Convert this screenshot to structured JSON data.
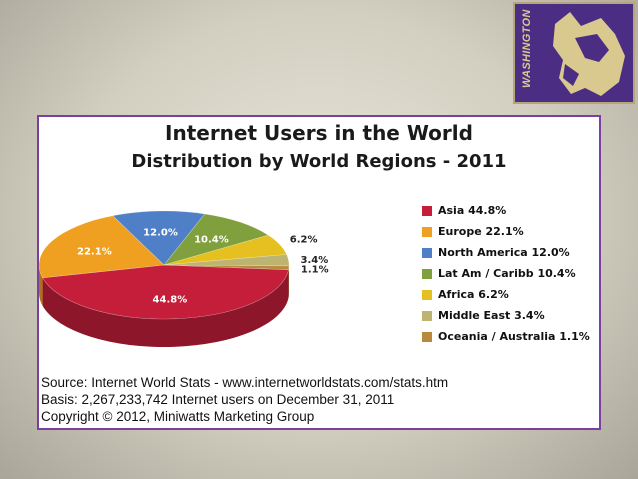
{
  "logo": {
    "text": "WASHINGTON",
    "icon": "husky-icon"
  },
  "chart_data": {
    "type": "pie",
    "title": "Internet Users in the World",
    "subtitle": "Distribution by World Regions - 2011",
    "slices": [
      {
        "name": "Asia",
        "value": 44.8,
        "label": "44.8%",
        "legend": "Asia  44.8%",
        "color": "#c41e3a"
      },
      {
        "name": "Europe",
        "value": 22.1,
        "label": "22.1%",
        "legend": "Europe  22.1%",
        "color": "#f0a020"
      },
      {
        "name": "North America",
        "value": 12.0,
        "label": "12.0%",
        "legend": "North America  12.0%",
        "color": "#4f7fc6"
      },
      {
        "name": "Lat Am / Caribb",
        "value": 10.4,
        "label": "10.4%",
        "legend": "Lat Am / Caribb  10.4%",
        "color": "#7fa03c"
      },
      {
        "name": "Africa",
        "value": 6.2,
        "label": "6.2%",
        "legend": "Africa  6.2%",
        "color": "#e6c020"
      },
      {
        "name": "Middle East",
        "value": 3.4,
        "label": "3.4%",
        "legend": "Middle East  3.4%",
        "color": "#bcb470"
      },
      {
        "name": "Oceania / Australia",
        "value": 1.1,
        "label": "1.1%",
        "legend": "Oceania / Australia  1.1%",
        "color": "#b88a3c"
      }
    ],
    "legend_position": "right"
  },
  "source": {
    "line1": "Source: Internet World Stats -  www.internetworldstats.com/stats.htm",
    "line2": "Basis: 2,267,233,742 Internet users on December 31, 2011",
    "line3": "Copyright © 2012, Miniwatts Marketing Group"
  }
}
